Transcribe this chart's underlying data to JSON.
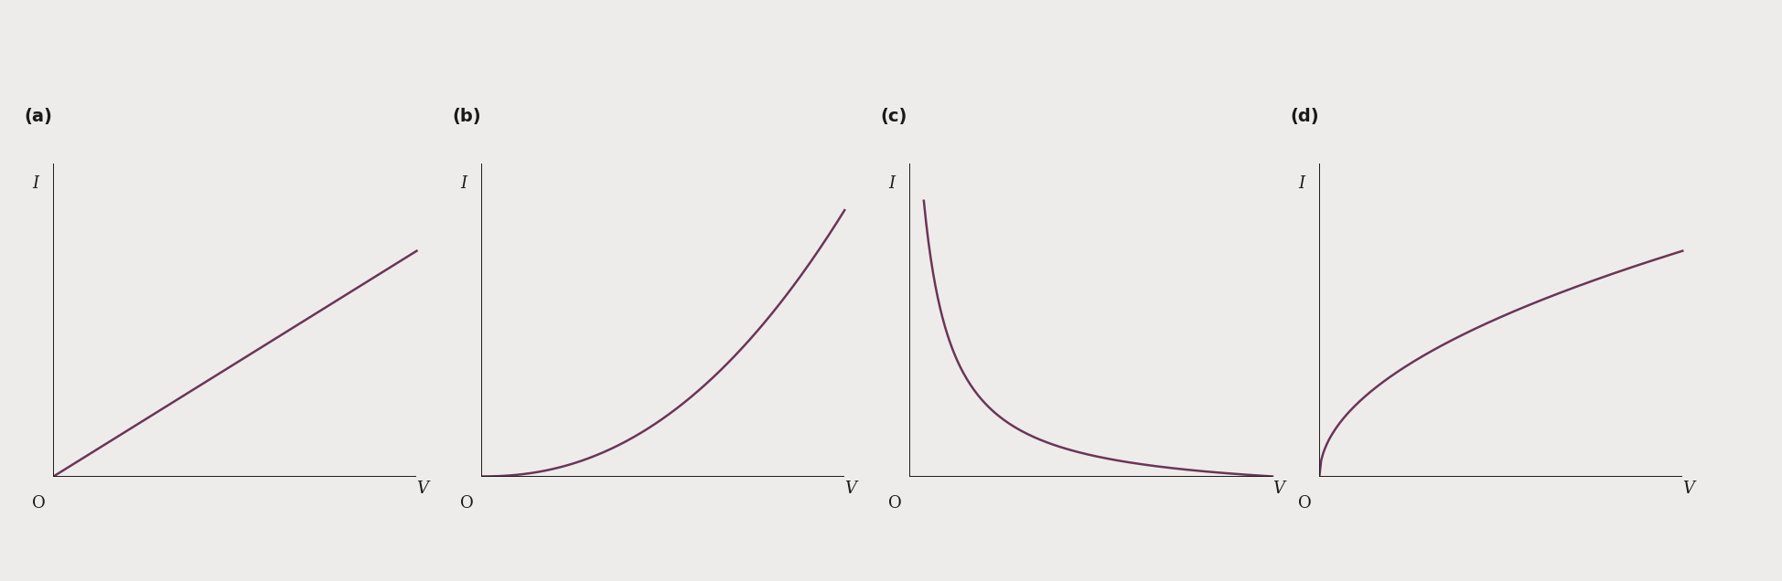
{
  "curve_color": "#6b3558",
  "axis_color": "#1a1a1a",
  "label_color": "#1a1a1a",
  "background_color": "#eeecea",
  "panel_labels": [
    "(a)",
    "(b)",
    "(c)",
    "(d)"
  ],
  "axis_label_I": "I",
  "axis_label_V": "V",
  "origin_label": "O",
  "figsize": [
    19.49,
    6.36
  ],
  "dpi": 100,
  "curve_lw": 1.8,
  "axis_lw": 1.4
}
